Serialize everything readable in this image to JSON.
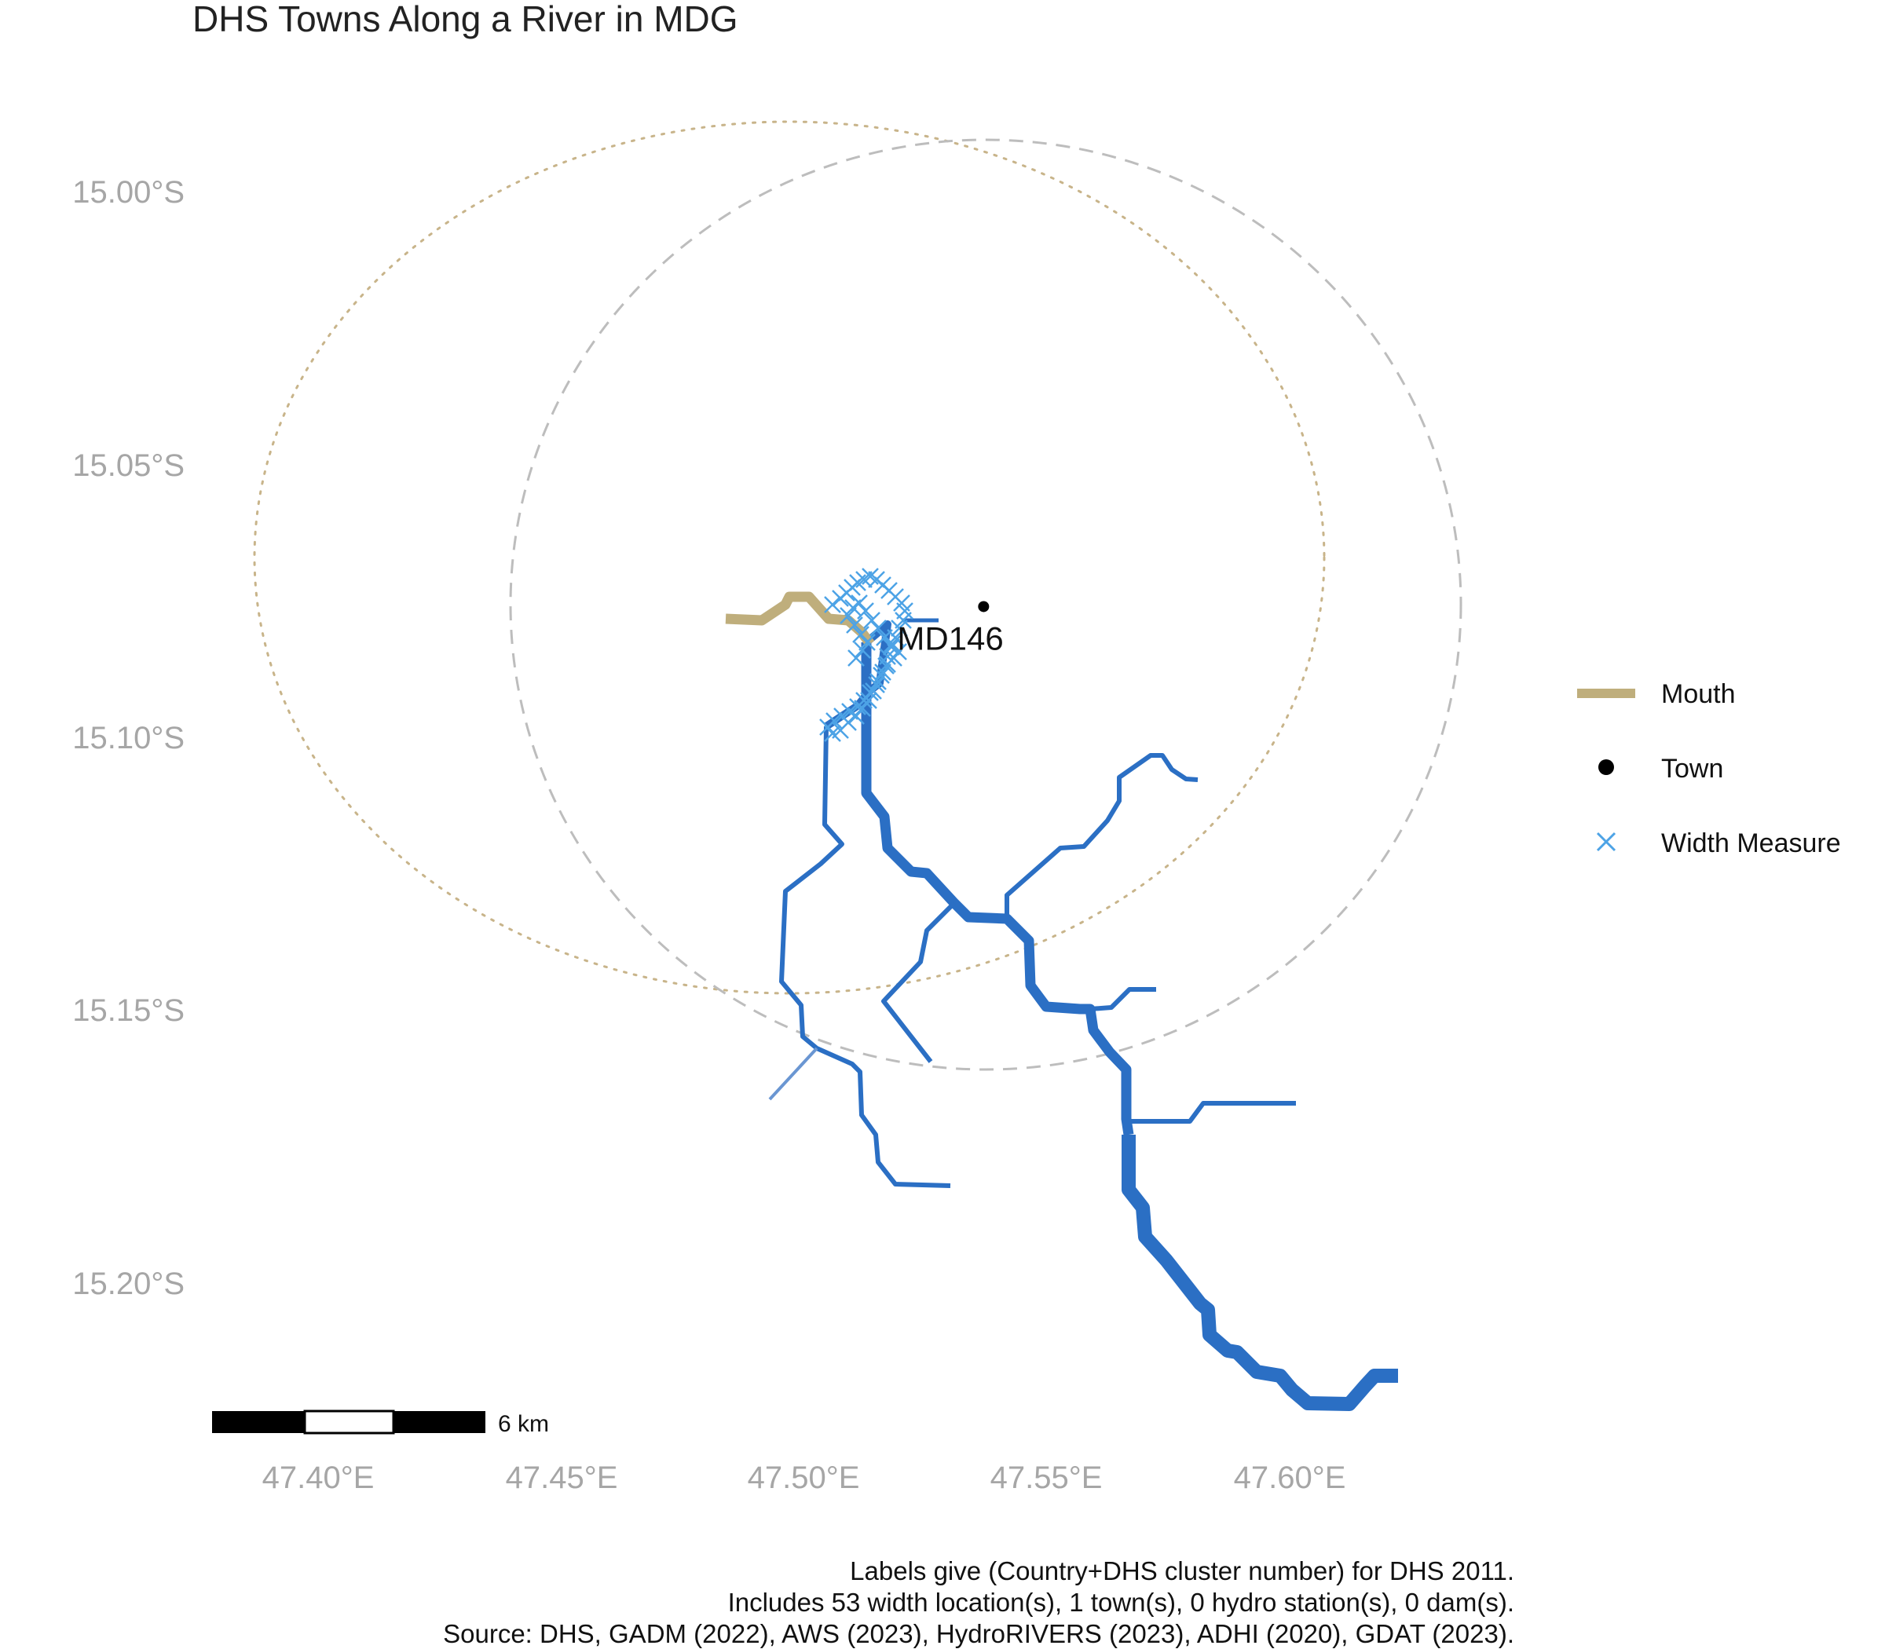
{
  "title": "DHS Towns Along a River in MDG",
  "axes": {
    "x_ticks": [
      "47.40°E",
      "47.45°E",
      "47.50°E",
      "47.55°E",
      "47.60°E"
    ],
    "y_ticks": [
      "15.00°S",
      "15.05°S",
      "15.10°S",
      "15.15°S",
      "15.20°S"
    ]
  },
  "legend": {
    "position": "right",
    "items": [
      {
        "label": "Mouth",
        "color": "#bfae7c",
        "symbol": "line"
      },
      {
        "label": "Town",
        "color": "#000000",
        "symbol": "dot"
      },
      {
        "label": "Width Measure",
        "color": "#4da3e6",
        "symbol": "cross"
      }
    ]
  },
  "towns": [
    {
      "label": "MD146",
      "lon": 47.537,
      "lat": -15.076
    }
  ],
  "scale_bar": {
    "label": "6 km"
  },
  "caption": [
    "Labels give (Country+DHS cluster number) for DHS 2011.",
    "Includes 53 width location(s), 1 town(s), 0 hydro station(s), 0 dam(s).",
    "Source: DHS, GADM (2022), AWS (2023), HydroRIVERS (2023), ADHI (2020), GDAT (2023)."
  ],
  "colors": {
    "river": "#2b6fc4",
    "mouth": "#bfae7c",
    "width_measure": "#4da3e6",
    "buffer_dashed": "#bdbdbd",
    "buffer_dotted": "#c8b48a",
    "tick_text": "#a6a6a6"
  }
}
